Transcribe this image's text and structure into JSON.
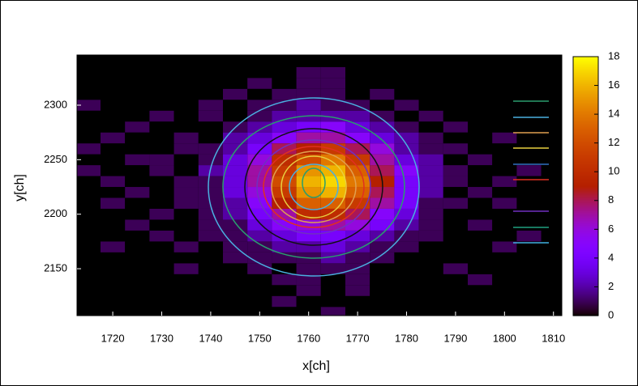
{
  "chart_data": {
    "type": "heatmap",
    "xlabel": "x[ch]",
    "ylabel": "y[ch]",
    "xlim": [
      1712.7,
      1811.7
    ],
    "xticks": [
      1720,
      1730,
      1740,
      1750,
      1760,
      1770,
      1780,
      1790,
      1800,
      1810
    ],
    "ylim": [
      2107,
      2346
    ],
    "yticks": [
      2150,
      2200,
      2250,
      2300
    ],
    "zlim": [
      0,
      18
    ],
    "zticks": [
      0,
      2,
      4,
      6,
      8,
      10,
      12,
      14,
      16,
      18
    ],
    "colormap": "gnuplot",
    "xbins": [
      1712.5,
      1717.5,
      1722.5,
      1727.5,
      1732.5,
      1737.5,
      1742.5,
      1747.5,
      1752.5,
      1757.5,
      1762.5,
      1767.5,
      1772.5,
      1777.5,
      1782.5,
      1787.5,
      1792.5,
      1797.5,
      1802.5,
      1807.5,
      1812.5
    ],
    "ybins": [
      2105,
      2115,
      2125,
      2135,
      2145,
      2155,
      2165,
      2175,
      2185,
      2195,
      2205,
      2215,
      2225,
      2235,
      2245,
      2255,
      2265,
      2275,
      2285,
      2295,
      2305,
      2315,
      2325,
      2335,
      2345
    ],
    "z": [
      [
        0,
        0,
        0,
        0,
        0,
        0,
        0,
        0,
        0,
        0,
        1,
        0,
        0,
        0,
        0,
        0,
        0,
        0,
        0,
        0
      ],
      [
        0,
        0,
        0,
        0,
        0,
        0,
        0,
        0,
        1,
        0,
        0,
        0,
        0,
        0,
        0,
        0,
        0,
        0,
        0,
        0
      ],
      [
        0,
        0,
        0,
        0,
        0,
        0,
        0,
        0,
        0,
        1,
        0,
        1,
        0,
        0,
        0,
        0,
        0,
        0,
        0,
        0
      ],
      [
        0,
        0,
        0,
        0,
        0,
        0,
        0,
        0,
        1,
        1,
        0,
        1,
        0,
        0,
        0,
        0,
        1,
        0,
        0,
        0
      ],
      [
        0,
        0,
        0,
        0,
        1,
        0,
        0,
        1,
        0,
        1,
        1,
        1,
        0,
        0,
        0,
        1,
        0,
        0,
        0,
        0
      ],
      [
        0,
        0,
        0,
        0,
        0,
        0,
        1,
        1,
        1,
        1,
        2,
        1,
        1,
        0,
        0,
        0,
        0,
        0,
        0,
        0
      ],
      [
        0,
        1,
        0,
        0,
        1,
        0,
        1,
        1,
        2,
        2,
        3,
        2,
        1,
        1,
        0,
        0,
        0,
        1,
        0,
        0
      ],
      [
        0,
        0,
        0,
        1,
        0,
        1,
        1,
        2,
        3,
        4,
        4,
        3,
        2,
        1,
        1,
        0,
        0,
        0,
        1,
        0
      ],
      [
        0,
        0,
        1,
        0,
        0,
        1,
        1,
        3,
        5,
        6,
        7,
        6,
        4,
        2,
        1,
        0,
        1,
        0,
        0,
        0
      ],
      [
        0,
        0,
        0,
        1,
        0,
        1,
        2,
        4,
        7,
        10,
        10,
        8,
        5,
        3,
        1,
        0,
        0,
        0,
        0,
        0
      ],
      [
        0,
        1,
        0,
        0,
        1,
        1,
        2,
        5,
        9,
        13,
        13,
        11,
        7,
        4,
        1,
        1,
        0,
        1,
        0,
        0
      ],
      [
        0,
        0,
        1,
        0,
        1,
        1,
        3,
        6,
        11,
        15,
        16,
        13,
        8,
        4,
        2,
        0,
        1,
        0,
        0,
        0
      ],
      [
        0,
        1,
        0,
        0,
        1,
        1,
        3,
        7,
        12,
        16,
        17,
        14,
        9,
        4,
        2,
        1,
        0,
        1,
        0,
        0
      ],
      [
        1,
        0,
        0,
        1,
        0,
        2,
        3,
        7,
        11,
        15,
        16,
        13,
        8,
        5,
        2,
        1,
        0,
        0,
        1,
        0
      ],
      [
        0,
        0,
        1,
        1,
        0,
        1,
        3,
        6,
        10,
        12,
        14,
        11,
        7,
        3,
        2,
        0,
        1,
        0,
        0,
        0
      ],
      [
        1,
        0,
        0,
        0,
        1,
        1,
        2,
        4,
        8,
        9,
        11,
        8,
        6,
        2,
        1,
        1,
        0,
        0,
        0,
        0
      ],
      [
        0,
        1,
        0,
        0,
        1,
        0,
        2,
        3,
        5,
        7,
        7,
        5,
        3,
        2,
        1,
        0,
        0,
        1,
        0,
        0
      ],
      [
        0,
        0,
        1,
        0,
        0,
        0,
        1,
        2,
        3,
        4,
        5,
        3,
        2,
        1,
        0,
        1,
        0,
        0,
        0,
        0
      ],
      [
        0,
        0,
        0,
        1,
        0,
        1,
        0,
        1,
        2,
        2,
        2,
        2,
        1,
        0,
        1,
        0,
        0,
        0,
        0,
        0
      ],
      [
        1,
        0,
        0,
        0,
        0,
        1,
        0,
        1,
        1,
        2,
        1,
        1,
        0,
        1,
        0,
        0,
        0,
        0,
        0,
        0
      ],
      [
        0,
        0,
        0,
        0,
        0,
        0,
        1,
        0,
        1,
        1,
        1,
        0,
        1,
        0,
        0,
        0,
        0,
        0,
        0,
        0
      ],
      [
        0,
        0,
        0,
        0,
        0,
        0,
        0,
        1,
        0,
        1,
        1,
        0,
        0,
        0,
        0,
        0,
        0,
        0,
        0,
        0
      ],
      [
        0,
        0,
        0,
        0,
        0,
        0,
        0,
        0,
        0,
        1,
        1,
        0,
        0,
        0,
        0,
        0,
        0,
        0,
        0,
        0
      ],
      [
        0,
        0,
        0,
        0,
        0,
        0,
        0,
        0,
        0,
        0,
        0,
        0,
        0,
        0,
        0,
        0,
        0,
        0,
        0,
        0
      ]
    ]
  }
}
